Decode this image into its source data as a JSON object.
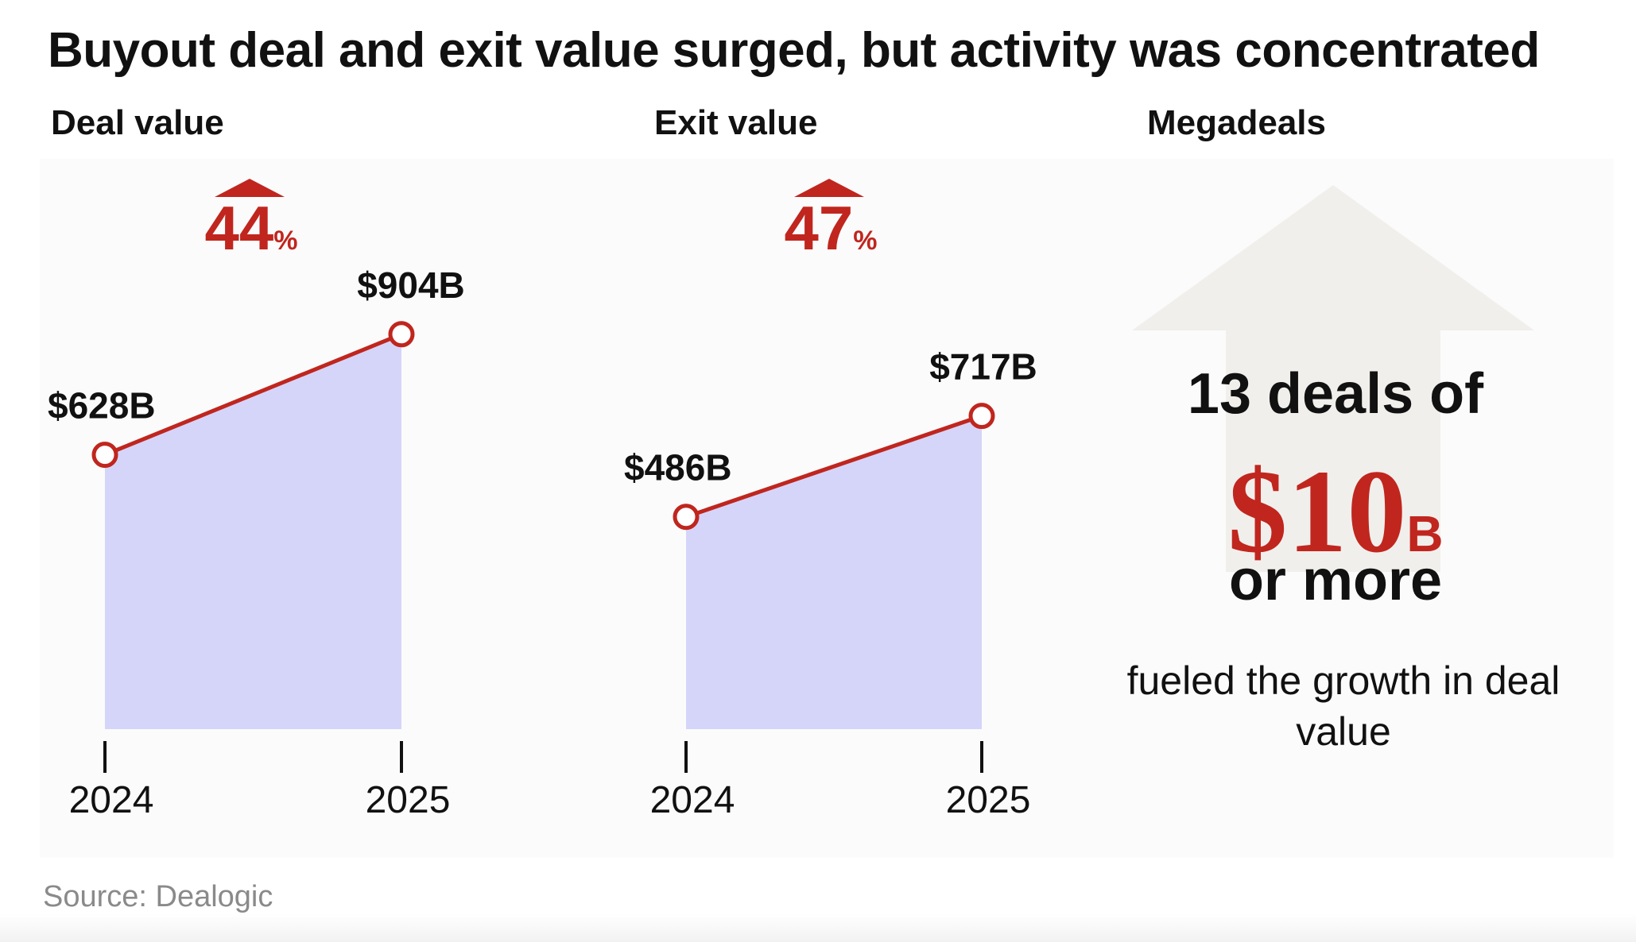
{
  "title": "Buyout deal and exit value surged, but activity was concentrated",
  "source": "Source: Dealogic",
  "colors": {
    "accent": "#c0261e",
    "area_fill": "#d5d5fa",
    "arrow_fill": "#f1efec",
    "text": "#111111",
    "muted": "#8a8a8a"
  },
  "panels": {
    "deal": {
      "title": "Deal value",
      "change_number": "44",
      "change_unit": "%"
    },
    "exit": {
      "title": "Exit value",
      "change_number": "47",
      "change_unit": "%"
    },
    "mega": {
      "title": "Megadeals",
      "line1": "13 deals of",
      "amount": "$10",
      "amount_unit": "B",
      "line3": "or more",
      "caption": "fueled the growth in deal value"
    }
  },
  "chart_data": [
    {
      "type": "area",
      "title": "Deal value",
      "x": [
        "2024",
        "2025"
      ],
      "values": [
        628,
        904
      ],
      "value_labels": [
        "$628B",
        "$904B"
      ],
      "unit": "$B",
      "change_label": "44%"
    },
    {
      "type": "area",
      "title": "Exit value",
      "x": [
        "2024",
        "2025"
      ],
      "values": [
        486,
        717
      ],
      "value_labels": [
        "$486B",
        "$717B"
      ],
      "unit": "$B",
      "change_label": "47%"
    }
  ]
}
